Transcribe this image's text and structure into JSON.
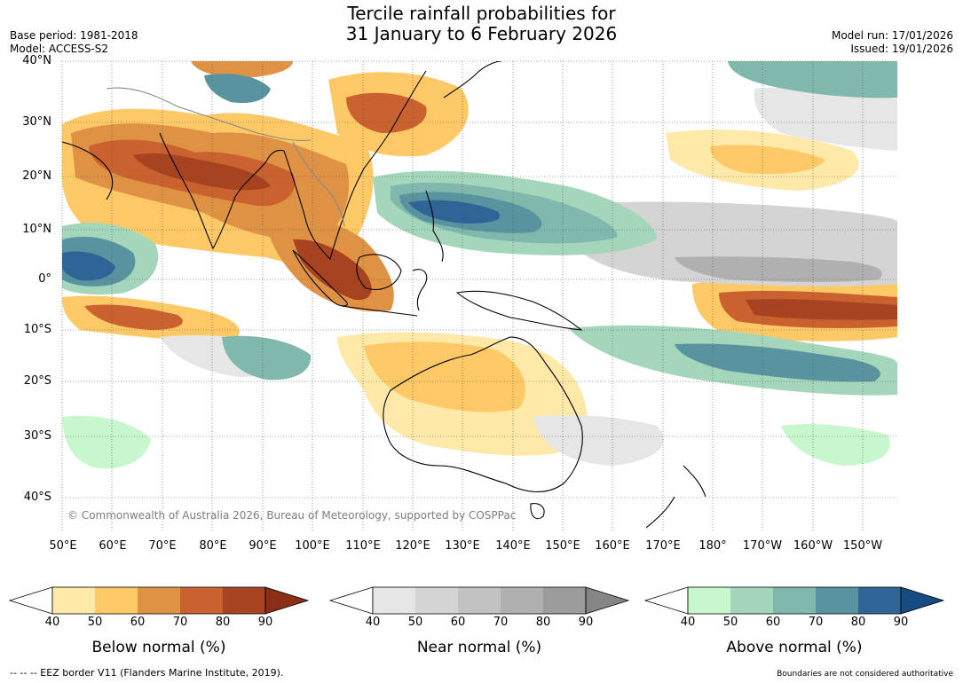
{
  "header": {
    "title_line1": "Tercile rainfall probabilities for",
    "title_line2": "31 January to 6 February 2026",
    "base_period": "Base period: 1981-2018",
    "model": "Model: ACCESS-S2",
    "model_run": "Model run: 17/01/2026",
    "issued": "Issued: 19/01/2026"
  },
  "map": {
    "lat_labels": [
      "40°N",
      "30°N",
      "20°N",
      "10°N",
      "0°",
      "10°S",
      "20°S",
      "30°S",
      "40°S"
    ],
    "lon_labels": [
      "50°E",
      "60°E",
      "70°E",
      "80°E",
      "90°E",
      "100°E",
      "110°E",
      "120°E",
      "130°E",
      "140°E",
      "150°E",
      "160°E",
      "170°E",
      "180°",
      "170°W",
      "160°W",
      "150°W"
    ],
    "copyright": "© Commonwealth of Australia 2026, Bureau of Meteorology, supported by COSPPac"
  },
  "legend": {
    "bars": [
      {
        "title": "Below normal (%)",
        "ticks": [
          "40",
          "50",
          "60",
          "70",
          "80",
          "90"
        ],
        "colors": [
          "#ffe9a8",
          "#fdc966",
          "#e09244",
          "#c9622f",
          "#a84322"
        ],
        "extend_color": "#8b2e17"
      },
      {
        "title": "Near normal (%)",
        "ticks": [
          "40",
          "50",
          "60",
          "70",
          "80",
          "90"
        ],
        "colors": [
          "#e6e6e6",
          "#d4d4d4",
          "#c2c2c2",
          "#b0b0b0",
          "#9c9c9c"
        ],
        "extend_color": "#858585"
      },
      {
        "title": "Above normal (%)",
        "ticks": [
          "40",
          "50",
          "60",
          "70",
          "80",
          "90"
        ],
        "colors": [
          "#c8f7cd",
          "#a4d6bb",
          "#80b8ad",
          "#5a93a0",
          "#2e6596"
        ],
        "extend_color": "#184b82"
      }
    ]
  },
  "footer": {
    "eez_note": "--  --  -- EEZ border V11 (Flanders Marine Institute, 2019).",
    "disclaimer": "Boundaries are not considered authoritative"
  }
}
